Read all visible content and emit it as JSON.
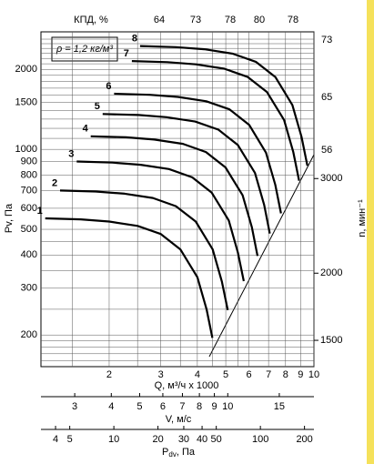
{
  "chart_data": {
    "type": "line",
    "title": "КПД, %",
    "efficiency_top": [
      64,
      73,
      78,
      80,
      78
    ],
    "efficiency_right": [
      73,
      65,
      56
    ],
    "density_note": "ρ = 1,2 кг/м³",
    "xlabel": "Q, м³/ч x 1000",
    "ylabel": "Pv, Па",
    "y2label": "n, мин⁻¹",
    "log_x": true,
    "log_y": true,
    "grid": true,
    "xlim": [
      1.17,
      10
    ],
    "xticks": [
      2,
      3,
      4,
      5,
      6,
      7,
      8,
      9,
      10
    ],
    "xminor": [
      1.5,
      2.5,
      3.5,
      4.5,
      5.5
    ],
    "ylim": [
      152,
      2770
    ],
    "yticks": [
      200,
      300,
      400,
      500,
      600,
      700,
      800,
      900,
      1000,
      1500,
      2000
    ],
    "yminor": [
      160,
      170,
      180,
      190,
      250,
      350,
      450,
      1100,
      1200,
      1300,
      1400,
      1600,
      1700,
      1800,
      1900,
      2100,
      2200,
      2300,
      2400,
      2500,
      2600
    ],
    "y2lim": [
      1340,
      5625
    ],
    "y2ticks": [
      1500,
      2000,
      3000
    ],
    "v_axis": {
      "label": "V, м/с",
      "lim": [
        2.3,
        19.7
      ],
      "ticks": [
        3,
        4,
        5,
        6,
        7,
        8,
        9,
        10,
        15
      ]
    },
    "pdv_axis": {
      "label_main": "P",
      "label_sub": "dv",
      "label_unit": ", Па",
      "lim": [
        3.18,
        232
      ],
      "ticks": [
        4,
        5,
        10,
        20,
        30,
        40,
        50,
        100,
        200
      ]
    },
    "series": [
      {
        "name": "1",
        "color": "#000000",
        "x": [
          1.21,
          1.6,
          2.0,
          2.5,
          3.0,
          3.5,
          4.0,
          4.3,
          4.5
        ],
        "values": [
          550,
          545,
          535,
          515,
          480,
          420,
          330,
          250,
          195
        ]
      },
      {
        "name": "2",
        "color": "#000000",
        "x": [
          1.36,
          1.8,
          2.26,
          2.82,
          3.38,
          3.95,
          4.51,
          4.85,
          5.08
        ],
        "values": [
          700,
          694,
          681,
          656,
          611,
          535,
          420,
          318,
          248
        ]
      },
      {
        "name": "3",
        "color": "#000000",
        "x": [
          1.55,
          2.05,
          2.56,
          3.2,
          3.84,
          4.48,
          5.12,
          5.5,
          5.76
        ],
        "values": [
          900,
          892,
          875,
          843,
          785,
          687,
          540,
          409,
          319
        ]
      },
      {
        "name": "4",
        "color": "#000000",
        "x": [
          1.73,
          2.28,
          2.85,
          3.57,
          4.28,
          4.99,
          5.71,
          6.14,
          6.42
        ],
        "values": [
          1120,
          1110,
          1089,
          1049,
          977,
          855,
          672,
          509,
          397
        ]
      },
      {
        "name": "5",
        "color": "#000000",
        "x": [
          1.9,
          2.52,
          3.14,
          3.93,
          4.72,
          5.5,
          6.29,
          6.76,
          7.07
        ],
        "values": [
          1359,
          1347,
          1322,
          1273,
          1186,
          1038,
          815,
          618,
          482
        ]
      },
      {
        "name": "6",
        "color": "#000000",
        "x": [
          2.08,
          2.75,
          3.43,
          4.29,
          5.15,
          6.01,
          6.86,
          7.38,
          7.72
        ],
        "values": [
          1620,
          1605,
          1576,
          1517,
          1414,
          1237,
          972,
          736,
          574
        ]
      },
      {
        "name": "7",
        "color": "#000000",
        "x": [
          2.39,
          3.16,
          3.95,
          4.94,
          5.93,
          6.92,
          7.91,
          8.5,
          8.9
        ],
        "values": [
          2150,
          2130,
          2091,
          2013,
          1876,
          1642,
          1290,
          977,
          762
        ]
      },
      {
        "name": "8",
        "color": "#000000",
        "x": [
          2.55,
          3.38,
          4.22,
          5.28,
          6.33,
          7.39,
          8.44,
          9.07,
          9.5
        ],
        "values": [
          2449,
          2426,
          2382,
          2293,
          2137,
          1870,
          1469,
          1113,
          868
        ]
      }
    ]
  }
}
